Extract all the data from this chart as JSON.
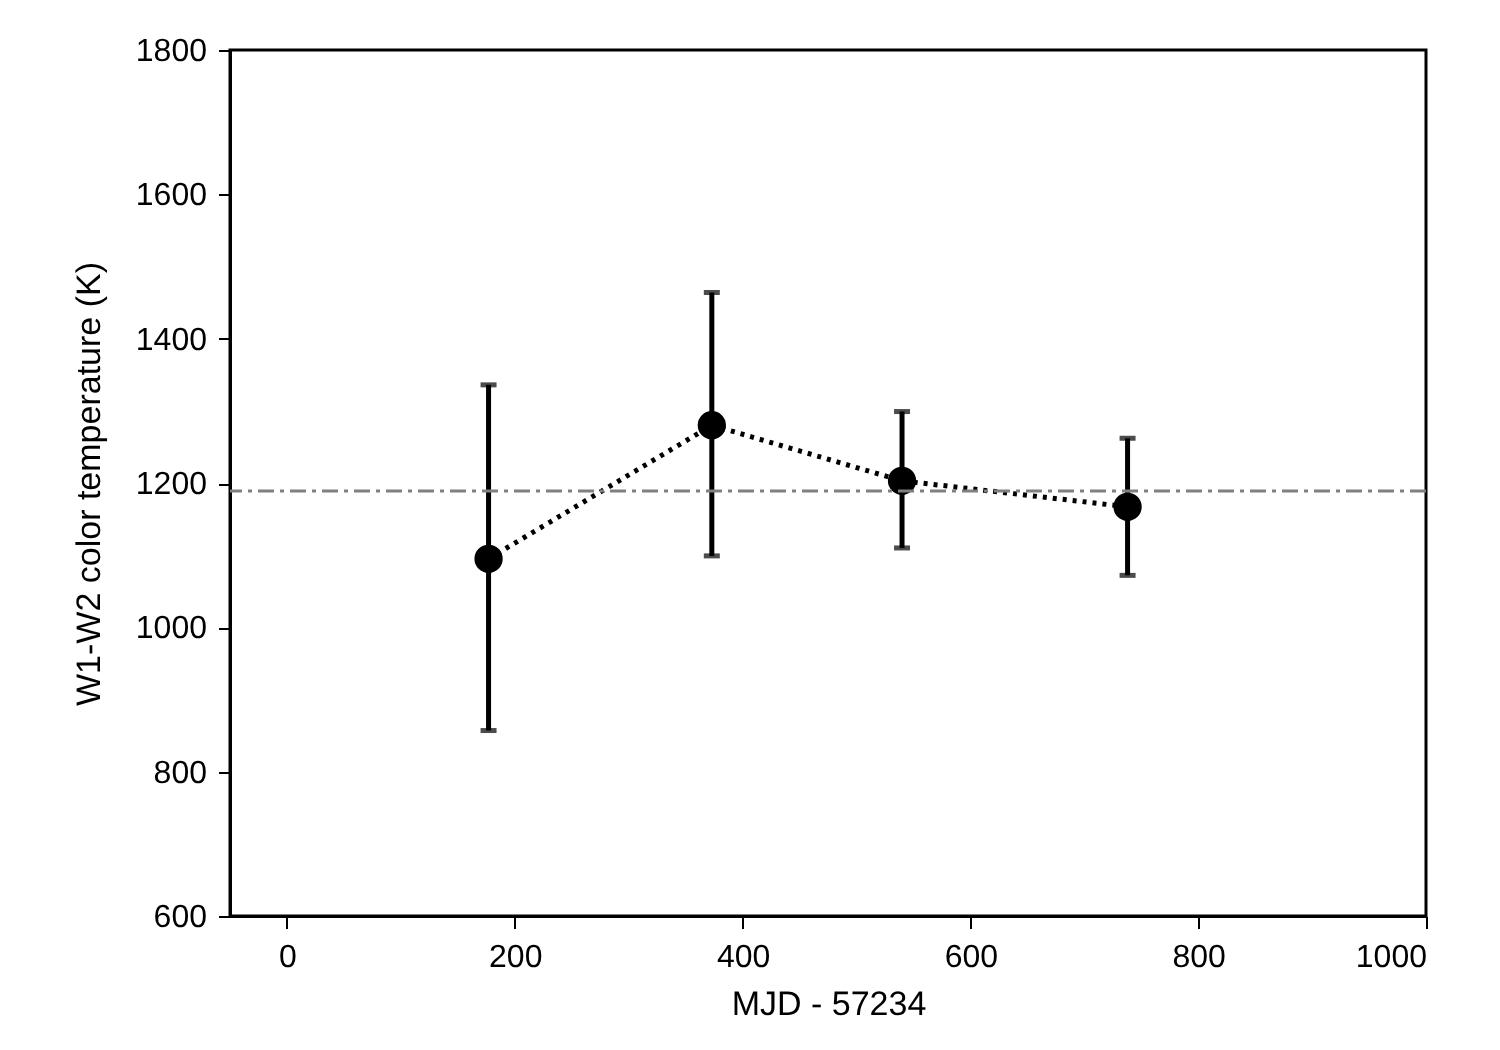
{
  "chart_data": {
    "type": "line",
    "xlabel": "MJD - 57234",
    "ylabel": "W1-W2 color temperature (K)",
    "x": [
      177,
      373,
      540,
      738
    ],
    "series": [
      {
        "color": "#000000",
        "values": [
          1095,
          1280,
          1203,
          1167
        ],
        "errors": [
          [
            857,
            1336
          ],
          [
            1099,
            1464
          ],
          [
            1110,
            1299
          ],
          [
            1072,
            1262
          ]
        ]
      }
    ],
    "xlim": [
      -50,
      1000
    ],
    "xticks": [
      0,
      200,
      400,
      600,
      800,
      1000
    ],
    "ylim": [
      600,
      1800
    ],
    "yticks": [
      600,
      800,
      1000,
      1200,
      1400,
      1600,
      1800
    ],
    "ref_lines": [
      {
        "axis": "y",
        "value": 1189,
        "color": "#808080",
        "line_style": "dashdot"
      }
    ],
    "marker": "circle",
    "line_style": "dotted",
    "grid": false
  }
}
